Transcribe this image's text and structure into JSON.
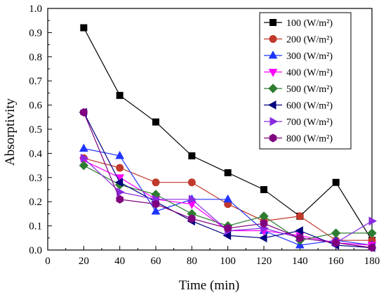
{
  "chart_data": {
    "type": "line",
    "title": "",
    "xlabel": "Time (min)",
    "ylabel": "Absorptivity",
    "xlim": [
      0,
      180
    ],
    "ylim": [
      0.0,
      1.0
    ],
    "xticks": [
      "0",
      "20",
      "40",
      "60",
      "80",
      "100",
      "120",
      "140",
      "160",
      "180"
    ],
    "yticks": [
      "0.0",
      "0.1",
      "0.2",
      "0.3",
      "0.4",
      "0.5",
      "0.6",
      "0.7",
      "0.8",
      "0.9",
      "1.0"
    ],
    "grid": false,
    "legend_position": "top-right",
    "x": [
      20,
      40,
      60,
      80,
      100,
      120,
      140,
      160,
      180
    ],
    "series": [
      {
        "name": "100 (W/m²)",
        "color": "#000000",
        "marker": "square",
        "values": [
          0.92,
          0.64,
          0.53,
          0.39,
          0.32,
          0.25,
          0.14,
          0.28,
          0.04
        ]
      },
      {
        "name": "200 (W/m²)",
        "color": "#c0392b",
        "marker": "circle",
        "values": [
          0.38,
          0.34,
          0.28,
          0.28,
          0.19,
          0.12,
          0.14,
          0.04,
          0.04
        ]
      },
      {
        "name": "300 (W/m²)",
        "color": "#1f35ff",
        "marker": "triangle-up",
        "values": [
          0.42,
          0.39,
          0.16,
          0.21,
          0.21,
          0.08,
          0.02,
          0.04,
          0.02
        ]
      },
      {
        "name": "400 (W/m²)",
        "color": "#ff00ff",
        "marker": "triangle-down",
        "values": [
          0.37,
          0.3,
          0.21,
          0.19,
          0.08,
          0.08,
          0.06,
          0.03,
          0.02
        ]
      },
      {
        "name": "500 (W/m²)",
        "color": "#2e7d32",
        "marker": "diamond",
        "values": [
          0.35,
          0.27,
          0.23,
          0.15,
          0.1,
          0.14,
          0.04,
          0.07,
          0.07
        ]
      },
      {
        "name": "600 (W/m²)",
        "color": "#000080",
        "marker": "triangle-left",
        "values": [
          0.57,
          0.28,
          0.2,
          0.12,
          0.06,
          0.05,
          0.08,
          0.02,
          0.01
        ]
      },
      {
        "name": "700 (W/m²)",
        "color": "#8a2be2",
        "marker": "triangle-right",
        "values": [
          0.38,
          0.24,
          0.21,
          0.21,
          0.08,
          0.09,
          0.05,
          0.03,
          0.12
        ]
      },
      {
        "name": "800 (W/m²)",
        "color": "#800080",
        "marker": "hexagon",
        "values": [
          0.57,
          0.21,
          0.19,
          0.13,
          0.09,
          0.11,
          0.05,
          0.03,
          0.01
        ]
      }
    ]
  }
}
